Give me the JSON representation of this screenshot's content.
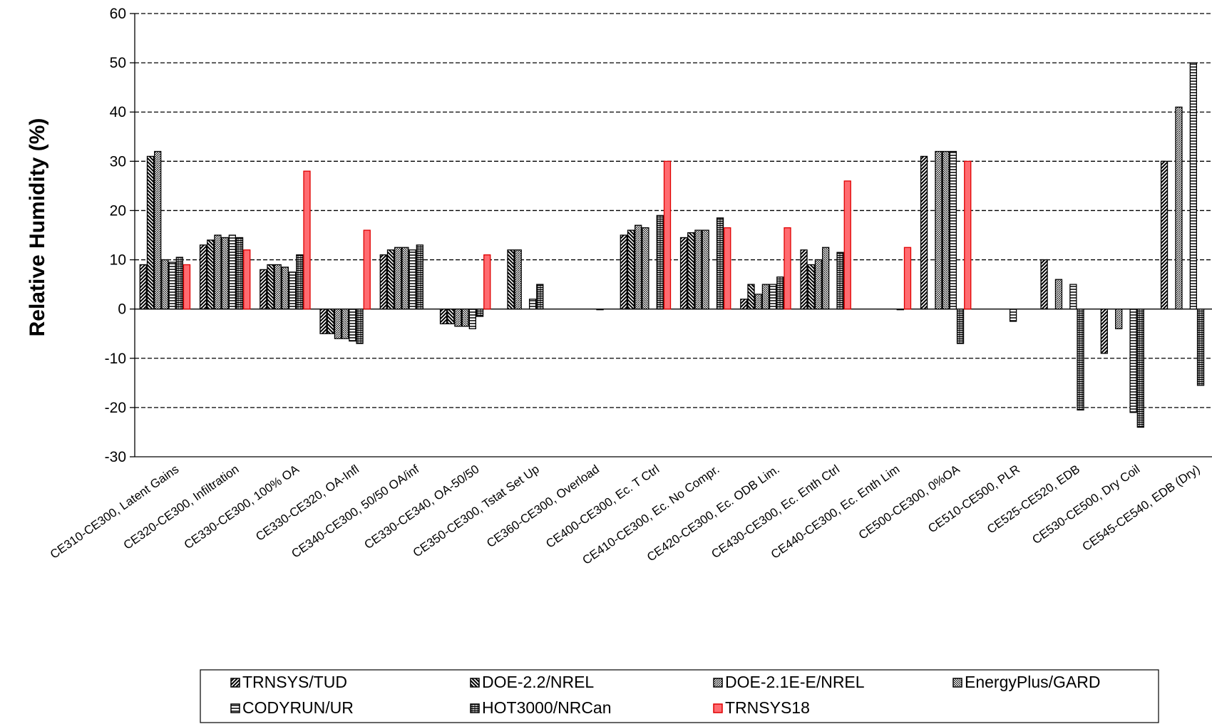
{
  "chart_data": {
    "type": "bar",
    "title": "",
    "xlabel": "",
    "ylabel": "Relative Humidity (%)",
    "ylim": [
      -30,
      60
    ],
    "yticks": [
      -30,
      -20,
      -10,
      0,
      10,
      20,
      30,
      40,
      50,
      60
    ],
    "grid": "dashed horizontal",
    "legend_position": "bottom",
    "categories": [
      "CE310-CE300, Latent Gains",
      "CE320-CE300, Infiltration",
      "CE330-CE300, 100% OA",
      "CE330-CE320, OA-Infl",
      "CE340-CE300, 50/50 OA/inf",
      "CE330-CE340, OA-50/50",
      "CE350-CE300, Tstat Set Up",
      "CE360-CE300, Overload",
      "CE400-CE300, Ec. T Ctrl",
      "CE410-CE300, Ec. No Compr.",
      "CE420-CE300, Ec. ODB Lim.",
      "CE430-CE300, Ec. Enth Ctrl",
      "CE440-CE300, Ec. Enth Lim",
      "CE500-CE300, 0%OA",
      "CE510-CE500, PLR",
      "CE525-CE520, EDB",
      "CE530-CE500, Dry Coil",
      "CE545-CE540, EDB (Dry)"
    ],
    "series": [
      {
        "name": "TRNSYS/TUD",
        "pattern": "fdiag",
        "color": "#ffffff",
        "values": [
          9,
          13,
          8,
          -5,
          11,
          -3,
          null,
          null,
          15,
          14.5,
          2,
          12,
          null,
          31,
          null,
          10,
          -9,
          30
        ]
      },
      {
        "name": "DOE-2.2/NREL",
        "pattern": "bdiag",
        "color": "#ffffff",
        "values": [
          31,
          14,
          9,
          -5,
          12,
          -3,
          12,
          null,
          16,
          15.5,
          5,
          9,
          null,
          null,
          null,
          null,
          null,
          null
        ]
      },
      {
        "name": "DOE-2.1E-E/NREL",
        "pattern": "fdiag-dense",
        "color": "#ffffff",
        "values": [
          32,
          15,
          9,
          -6,
          12.5,
          -3.5,
          12,
          null,
          17,
          16,
          3,
          10,
          null,
          32,
          null,
          6,
          -4,
          41
        ]
      },
      {
        "name": "EnergyPlus/GARD",
        "pattern": "bdiag-dense",
        "color": "#ffffff",
        "values": [
          10,
          14.5,
          8.5,
          -6,
          12.5,
          -3.5,
          null,
          null,
          16.5,
          16,
          5,
          12.5,
          null,
          32,
          null,
          null,
          null,
          null
        ]
      },
      {
        "name": "CODYRUN/UR",
        "pattern": "hlines",
        "color": "#ffffff",
        "values": [
          9.5,
          15,
          7.5,
          -6.5,
          12,
          -4,
          2,
          null,
          null,
          null,
          5,
          null,
          null,
          32,
          -2.5,
          5,
          -21,
          50
        ]
      },
      {
        "name": "HOT3000/NRCan",
        "pattern": "hlines-dense",
        "color": "#ffffff",
        "values": [
          10.5,
          14.5,
          11,
          -7,
          13,
          -1.5,
          5,
          0,
          19,
          18.5,
          6.5,
          11.5,
          0,
          -7,
          null,
          -20.5,
          -24,
          -15.5
        ]
      },
      {
        "name": "TRNSYS18",
        "pattern": "solid",
        "color": "#ff6b70",
        "values": [
          9,
          12,
          28,
          16,
          null,
          11,
          null,
          null,
          30,
          16.5,
          16.5,
          26,
          12.5,
          30,
          null,
          null,
          null,
          null
        ]
      }
    ]
  }
}
